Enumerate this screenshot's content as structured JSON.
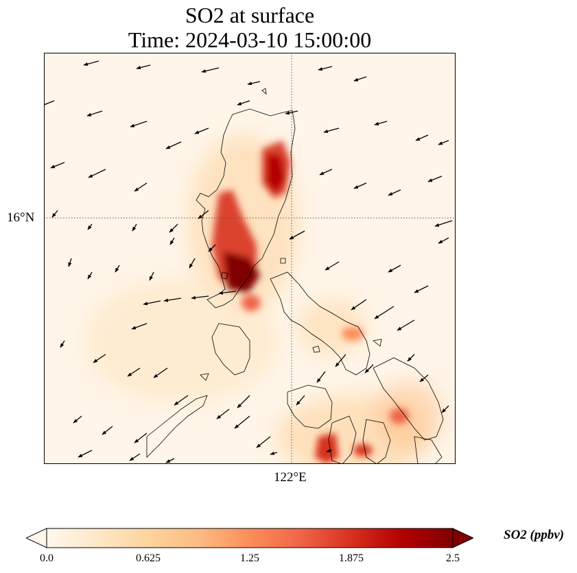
{
  "title": {
    "line1": "SO2 at surface",
    "line2": "Time: 2024-03-10 15:00:00"
  },
  "map": {
    "lat_label": "16°N",
    "lon_label": "122°E",
    "coastline_color": "#000000",
    "arrow_color": "#000000",
    "gridline_style": "dotted"
  },
  "colorbar": {
    "title": "SO2 (ppbv)",
    "colormap": "OrRd",
    "extend": "both",
    "range": [
      0.0,
      2.5
    ],
    "ticks": [
      "0.0",
      "0.625",
      "1.25",
      "1.875",
      "2.5"
    ],
    "colors": [
      "#fff7ec",
      "#fee8c8",
      "#fdd49e",
      "#fdbb84",
      "#fc8d59",
      "#ef6548",
      "#d7301f",
      "#b30000",
      "#7f0000"
    ]
  }
}
